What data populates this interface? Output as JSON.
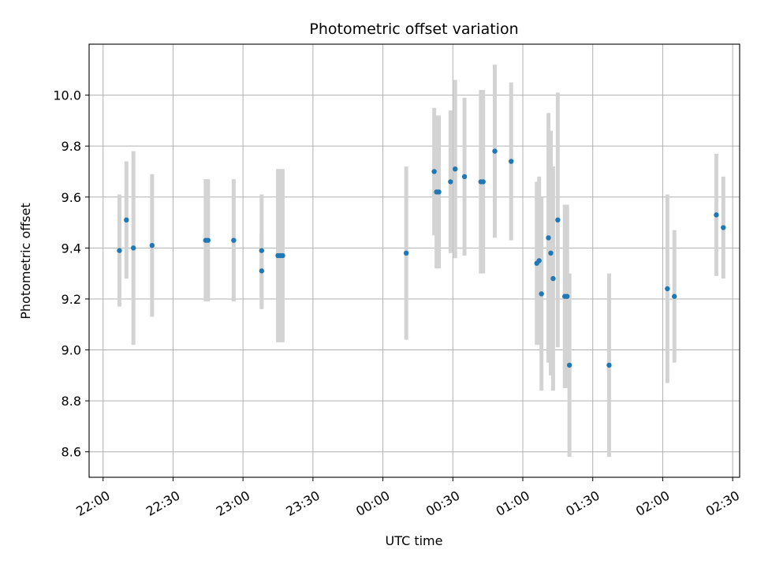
{
  "chart_data": {
    "type": "scatter",
    "title": "Photometric offset variation",
    "xlabel": "UTC time",
    "ylabel": "Photometric offset",
    "grid": true,
    "legend": "none",
    "xlim": [
      "21:54",
      "02:33"
    ],
    "ylim": [
      8.5,
      10.2
    ],
    "x_ticks": [
      "22:00",
      "22:30",
      "23:00",
      "23:30",
      "00:00",
      "00:30",
      "01:00",
      "01:30",
      "02:00",
      "02:30"
    ],
    "y_ticks": [
      "8.6",
      "8.8",
      "9.0",
      "9.2",
      "9.4",
      "9.6",
      "9.8",
      "10.0"
    ],
    "colors": {
      "points": "#1f77b4",
      "error_bars": "#d3d3d3",
      "grid": "#b0b0b0"
    },
    "series": [
      {
        "points": [
          {
            "x": "22:07",
            "y": 9.39,
            "err": 0.22
          },
          {
            "x": "22:10",
            "y": 9.51,
            "err": 0.23
          },
          {
            "x": "22:13",
            "y": 9.4,
            "err": 0.38
          },
          {
            "x": "22:21",
            "y": 9.41,
            "err": 0.28
          },
          {
            "x": "22:44",
            "y": 9.43,
            "err": 0.24
          },
          {
            "x": "22:45",
            "y": 9.43,
            "err": 0.24
          },
          {
            "x": "22:56",
            "y": 9.43,
            "err": 0.24
          },
          {
            "x": "23:08",
            "y": 9.39,
            "err": 0.22
          },
          {
            "x": "23:08",
            "y": 9.31,
            "err": 0.15
          },
          {
            "x": "23:15",
            "y": 9.37,
            "err": 0.34
          },
          {
            "x": "23:16",
            "y": 9.37,
            "err": 0.34
          },
          {
            "x": "23:17",
            "y": 9.37,
            "err": 0.34
          },
          {
            "x": "00:10",
            "y": 9.38,
            "err": 0.34
          },
          {
            "x": "00:22",
            "y": 9.7,
            "err": 0.25
          },
          {
            "x": "00:23",
            "y": 9.62,
            "err": 0.3
          },
          {
            "x": "00:24",
            "y": 9.62,
            "err": 0.3
          },
          {
            "x": "00:29",
            "y": 9.66,
            "err": 0.28
          },
          {
            "x": "00:31",
            "y": 9.71,
            "err": 0.35
          },
          {
            "x": "00:35",
            "y": 9.68,
            "err": 0.31
          },
          {
            "x": "00:42",
            "y": 9.66,
            "err": 0.36
          },
          {
            "x": "00:43",
            "y": 9.66,
            "err": 0.36
          },
          {
            "x": "00:48",
            "y": 9.78,
            "err": 0.34
          },
          {
            "x": "00:55",
            "y": 9.74,
            "err": 0.31
          },
          {
            "x": "01:06",
            "y": 9.34,
            "err": 0.32
          },
          {
            "x": "01:07",
            "y": 9.35,
            "err": 0.33
          },
          {
            "x": "01:08",
            "y": 9.22,
            "err": 0.38
          },
          {
            "x": "01:11",
            "y": 9.44,
            "err": 0.49
          },
          {
            "x": "01:12",
            "y": 9.38,
            "err": 0.48
          },
          {
            "x": "01:13",
            "y": 9.28,
            "err": 0.44
          },
          {
            "x": "01:15",
            "y": 9.51,
            "err": 0.5
          },
          {
            "x": "01:18",
            "y": 9.21,
            "err": 0.36
          },
          {
            "x": "01:19",
            "y": 9.21,
            "err": 0.36
          },
          {
            "x": "01:20",
            "y": 8.94,
            "err": 0.36
          },
          {
            "x": "01:37",
            "y": 8.94,
            "err": 0.36
          },
          {
            "x": "02:02",
            "y": 9.24,
            "err": 0.37
          },
          {
            "x": "02:05",
            "y": 9.21,
            "err": 0.26
          },
          {
            "x": "02:23",
            "y": 9.53,
            "err": 0.24
          },
          {
            "x": "02:26",
            "y": 9.48,
            "err": 0.2
          }
        ]
      }
    ]
  }
}
